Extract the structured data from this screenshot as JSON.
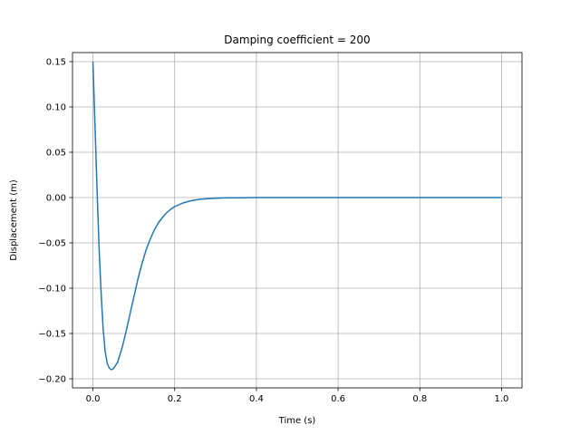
{
  "chart_data": {
    "type": "line",
    "title": "Damping coefficient = 200",
    "xlabel": "Time (s)",
    "ylabel": "Displacement (m)",
    "xlim": [
      -0.05,
      1.05
    ],
    "ylim": [
      -0.21,
      0.16
    ],
    "xticks": [
      0.0,
      0.2,
      0.4,
      0.6,
      0.8,
      1.0
    ],
    "xtick_labels": [
      "0.0",
      "0.2",
      "0.4",
      "0.6",
      "0.8",
      "1.0"
    ],
    "yticks": [
      0.15,
      0.1,
      0.05,
      0.0,
      -0.05,
      -0.1,
      -0.15,
      -0.2
    ],
    "ytick_labels": [
      "0.15",
      "0.10",
      "0.05",
      "0.00",
      "−0.05",
      "−0.10",
      "−0.15",
      "−0.20"
    ],
    "grid": true,
    "line_color": "#1f77b4",
    "series": [
      {
        "x": [
          0.0,
          0.005,
          0.01,
          0.015,
          0.02,
          0.025,
          0.03,
          0.035,
          0.04,
          0.045,
          0.05,
          0.06,
          0.07,
          0.08,
          0.09,
          0.1,
          0.11,
          0.12,
          0.13,
          0.14,
          0.15,
          0.16,
          0.17,
          0.18,
          0.19,
          0.2,
          0.22,
          0.24,
          0.26,
          0.28,
          0.3,
          0.32,
          0.35,
          0.38,
          0.4,
          0.45,
          0.5,
          0.6,
          0.7,
          0.8,
          0.9,
          1.0
        ],
        "y": [
          0.15,
          0.08,
          0.01,
          -0.055,
          -0.105,
          -0.145,
          -0.17,
          -0.183,
          -0.188,
          -0.19,
          -0.189,
          -0.182,
          -0.168,
          -0.15,
          -0.13,
          -0.11,
          -0.09,
          -0.073,
          -0.058,
          -0.046,
          -0.036,
          -0.028,
          -0.022,
          -0.017,
          -0.013,
          -0.01,
          -0.006,
          -0.0035,
          -0.002,
          -0.0012,
          -0.0007,
          -0.0004,
          -0.0002,
          -0.0001,
          -5e-05,
          -2e-05,
          0.0,
          0.0,
          0.0,
          0.0,
          0.0,
          0.0
        ]
      }
    ]
  }
}
